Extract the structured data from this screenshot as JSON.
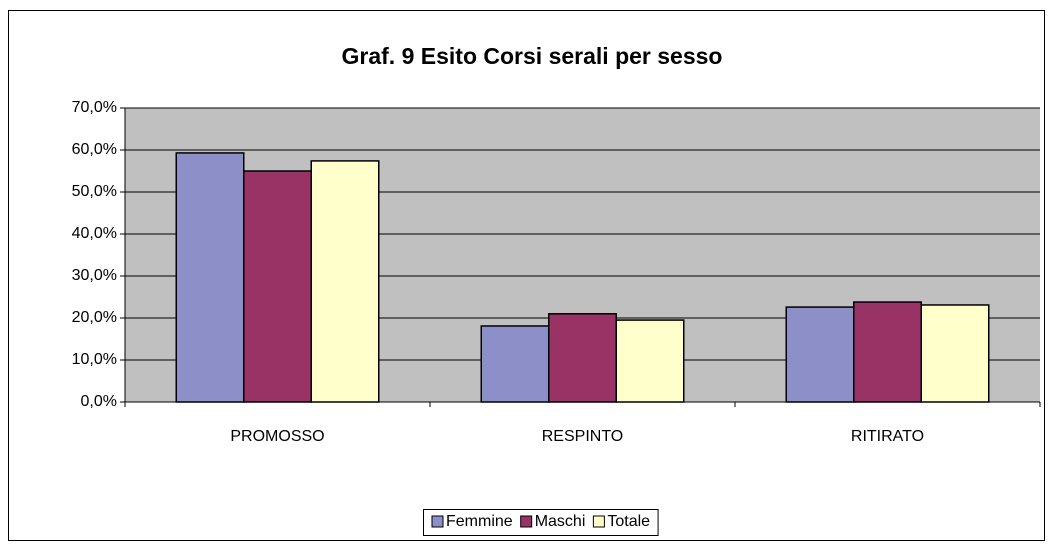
{
  "chart_data": {
    "type": "bar",
    "title": "Graf. 9 Esito Corsi serali per sesso",
    "categories": [
      "PROMOSSO",
      "RESPINTO",
      "RITIRATO"
    ],
    "series": [
      {
        "name": "Femmine",
        "color": "#8c8fc8",
        "values": [
          59.3,
          18.1,
          22.6
        ]
      },
      {
        "name": "Maschi",
        "color": "#993366",
        "values": [
          55.0,
          21.0,
          23.8
        ]
      },
      {
        "name": "Totale",
        "color": "#ffffcc",
        "values": [
          57.4,
          19.5,
          23.1
        ]
      }
    ],
    "ylim": [
      0,
      70
    ],
    "yticks": [
      {
        "value": 0,
        "label": "0,0%"
      },
      {
        "value": 10,
        "label": "10,0%"
      },
      {
        "value": 20,
        "label": "20,0%"
      },
      {
        "value": 30,
        "label": "30,0%"
      },
      {
        "value": 40,
        "label": "40,0%"
      },
      {
        "value": 50,
        "label": "50,0%"
      },
      {
        "value": 60,
        "label": "60,0%"
      },
      {
        "value": 70,
        "label": "70,0%"
      }
    ],
    "grid": true,
    "legend": "bottom"
  }
}
